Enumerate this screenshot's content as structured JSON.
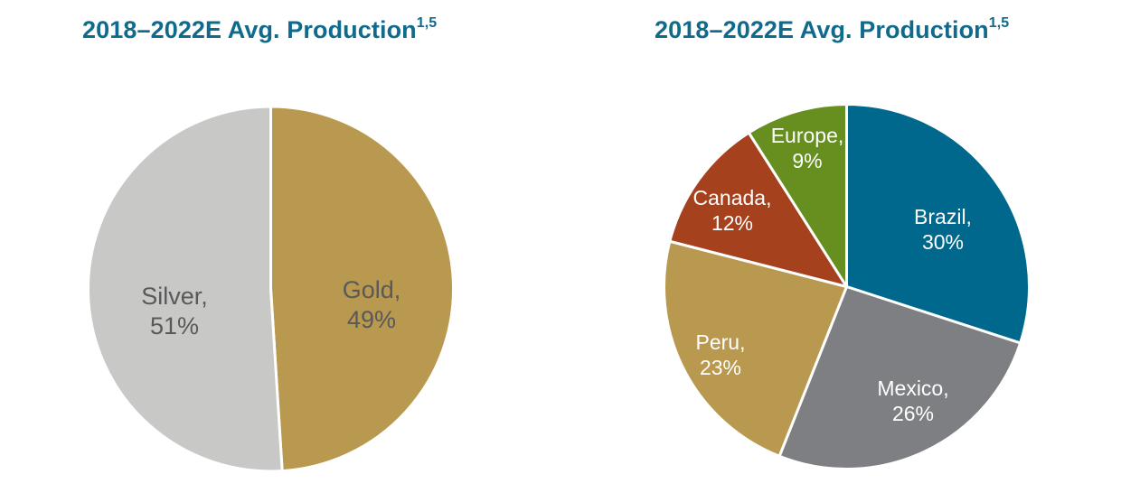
{
  "chart_data": [
    {
      "type": "pie",
      "title": "2018–2022E Avg. Production",
      "title_superscript": "1,5",
      "start": "top",
      "direction": "clockwise",
      "label_color": "#595959",
      "slices": [
        {
          "label": "Gold",
          "value": 49,
          "display": "49%",
          "color": "#b9984f"
        },
        {
          "label": "Silver",
          "value": 51,
          "display": "51%",
          "color": "#c8c9c7"
        }
      ]
    },
    {
      "type": "pie",
      "title": "2018–2022E Avg. Production",
      "title_superscript": "1,5",
      "start": "top",
      "direction": "clockwise",
      "label_color": "#ffffff",
      "slices": [
        {
          "label": "Brazil",
          "value": 30,
          "display": "30%",
          "color": "#00688c"
        },
        {
          "label": "Mexico",
          "value": 26,
          "display": "26%",
          "color": "#7e7f82"
        },
        {
          "label": "Peru",
          "value": 23,
          "display": "23%",
          "color": "#b9984f"
        },
        {
          "label": "Canada",
          "value": 12,
          "display": "12%",
          "color": "#a6411e"
        },
        {
          "label": "Europe",
          "value": 9,
          "display": "9%",
          "color": "#678f1f"
        }
      ]
    }
  ]
}
